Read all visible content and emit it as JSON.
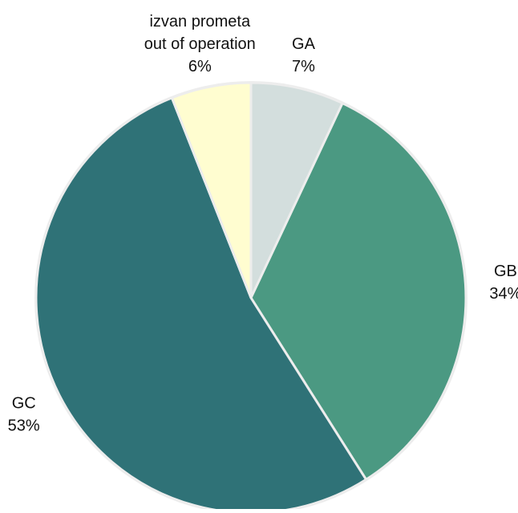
{
  "chart_data": {
    "type": "pie",
    "title": "",
    "start_angle_deg": 0,
    "direction": "clockwise",
    "slices": [
      {
        "label": "GA",
        "value": 7,
        "display": "7%",
        "color": "#D3DEDD"
      },
      {
        "label": "GB",
        "value": 34,
        "display": "34%",
        "color": "#4B9982"
      },
      {
        "label": "GC",
        "value": 53,
        "display": "53%",
        "color": "#2F7277"
      },
      {
        "label": "izvan prometa\nout of operation",
        "value": 6,
        "display": "6%",
        "color": "#FFFDD0"
      }
    ],
    "slice_border_color": "#EDEDED",
    "legend": "none"
  }
}
